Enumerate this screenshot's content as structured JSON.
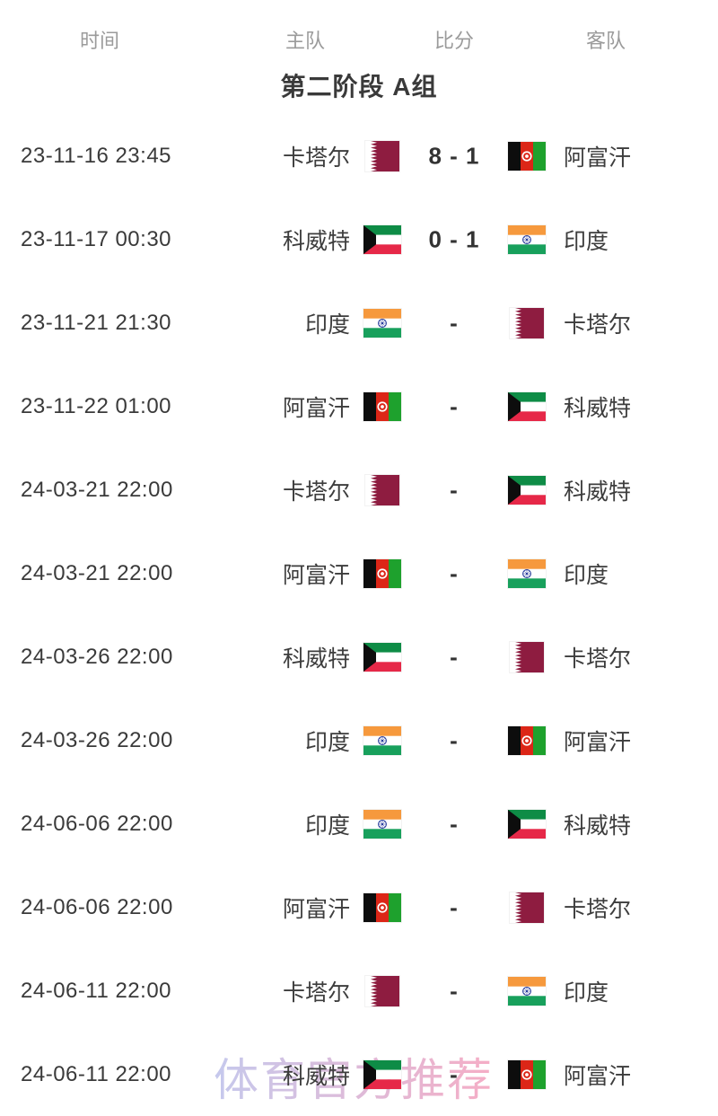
{
  "table": {
    "headers": [
      {
        "label": "时间"
      },
      {
        "label": "主队"
      },
      {
        "label": "比分"
      },
      {
        "label": "客队"
      }
    ],
    "group_title": "第二阶段 A组",
    "rows": [
      {
        "time": "23-11-16 23:45",
        "home": "卡塔尔",
        "home_flag": "qatar",
        "score": "8 - 1",
        "away": "阿富汗",
        "away_flag": "afghanistan"
      },
      {
        "time": "23-11-17 00:30",
        "home": "科威特",
        "home_flag": "kuwait",
        "score": "0 - 1",
        "away": "印度",
        "away_flag": "india"
      },
      {
        "time": "23-11-21 21:30",
        "home": "印度",
        "home_flag": "india",
        "score": "-",
        "away": "卡塔尔",
        "away_flag": "qatar"
      },
      {
        "time": "23-11-22 01:00",
        "home": "阿富汗",
        "home_flag": "afghanistan",
        "score": "-",
        "away": "科威特",
        "away_flag": "kuwait"
      },
      {
        "time": "24-03-21 22:00",
        "home": "卡塔尔",
        "home_flag": "qatar",
        "score": "-",
        "away": "科威特",
        "away_flag": "kuwait"
      },
      {
        "time": "24-03-21 22:00",
        "home": "阿富汗",
        "home_flag": "afghanistan",
        "score": "-",
        "away": "印度",
        "away_flag": "india"
      },
      {
        "time": "24-03-26 22:00",
        "home": "科威特",
        "home_flag": "kuwait",
        "score": "-",
        "away": "卡塔尔",
        "away_flag": "qatar"
      },
      {
        "time": "24-03-26 22:00",
        "home": "印度",
        "home_flag": "india",
        "score": "-",
        "away": "阿富汗",
        "away_flag": "afghanistan"
      },
      {
        "time": "24-06-06 22:00",
        "home": "印度",
        "home_flag": "india",
        "score": "-",
        "away": "科威特",
        "away_flag": "kuwait"
      },
      {
        "time": "24-06-06 22:00",
        "home": "阿富汗",
        "home_flag": "afghanistan",
        "score": "-",
        "away": "卡塔尔",
        "away_flag": "qatar"
      },
      {
        "time": "24-06-11 22:00",
        "home": "卡塔尔",
        "home_flag": "qatar",
        "score": "-",
        "away": "印度",
        "away_flag": "india"
      },
      {
        "time": "24-06-11 22:00",
        "home": "科威特",
        "home_flag": "kuwait",
        "score": "-",
        "away": "阿富汗",
        "away_flag": "afghanistan"
      }
    ]
  },
  "flags": {
    "qatar": {
      "icon": "flag-qatar-icon",
      "colors": {
        "maroon": "#8e1c40",
        "white": "#ffffff"
      }
    },
    "afghanistan": {
      "icon": "flag-afghanistan-icon",
      "colors": {
        "black": "#0d0d0d",
        "red": "#dc2617",
        "green": "#1ea12d",
        "white": "#ffffff"
      }
    },
    "kuwait": {
      "icon": "flag-kuwait-icon",
      "colors": {
        "green": "#0e8c46",
        "white": "#ffffff",
        "red": "#e62848",
        "black": "#0d0d0d"
      }
    },
    "india": {
      "icon": "flag-india-icon",
      "colors": {
        "saffron": "#f6993d",
        "white": "#ffffff",
        "green": "#18a05c",
        "navy": "#2a3f9e"
      }
    }
  },
  "watermark": {
    "text": "体育官方推荐",
    "color_start": "#bcc0ea",
    "color_end": "#f4a0bc"
  },
  "colors": {
    "header_text": "#9b9b9b",
    "title_text": "#3a3a3a",
    "body_text": "#3d3d3d",
    "background": "#ffffff"
  }
}
